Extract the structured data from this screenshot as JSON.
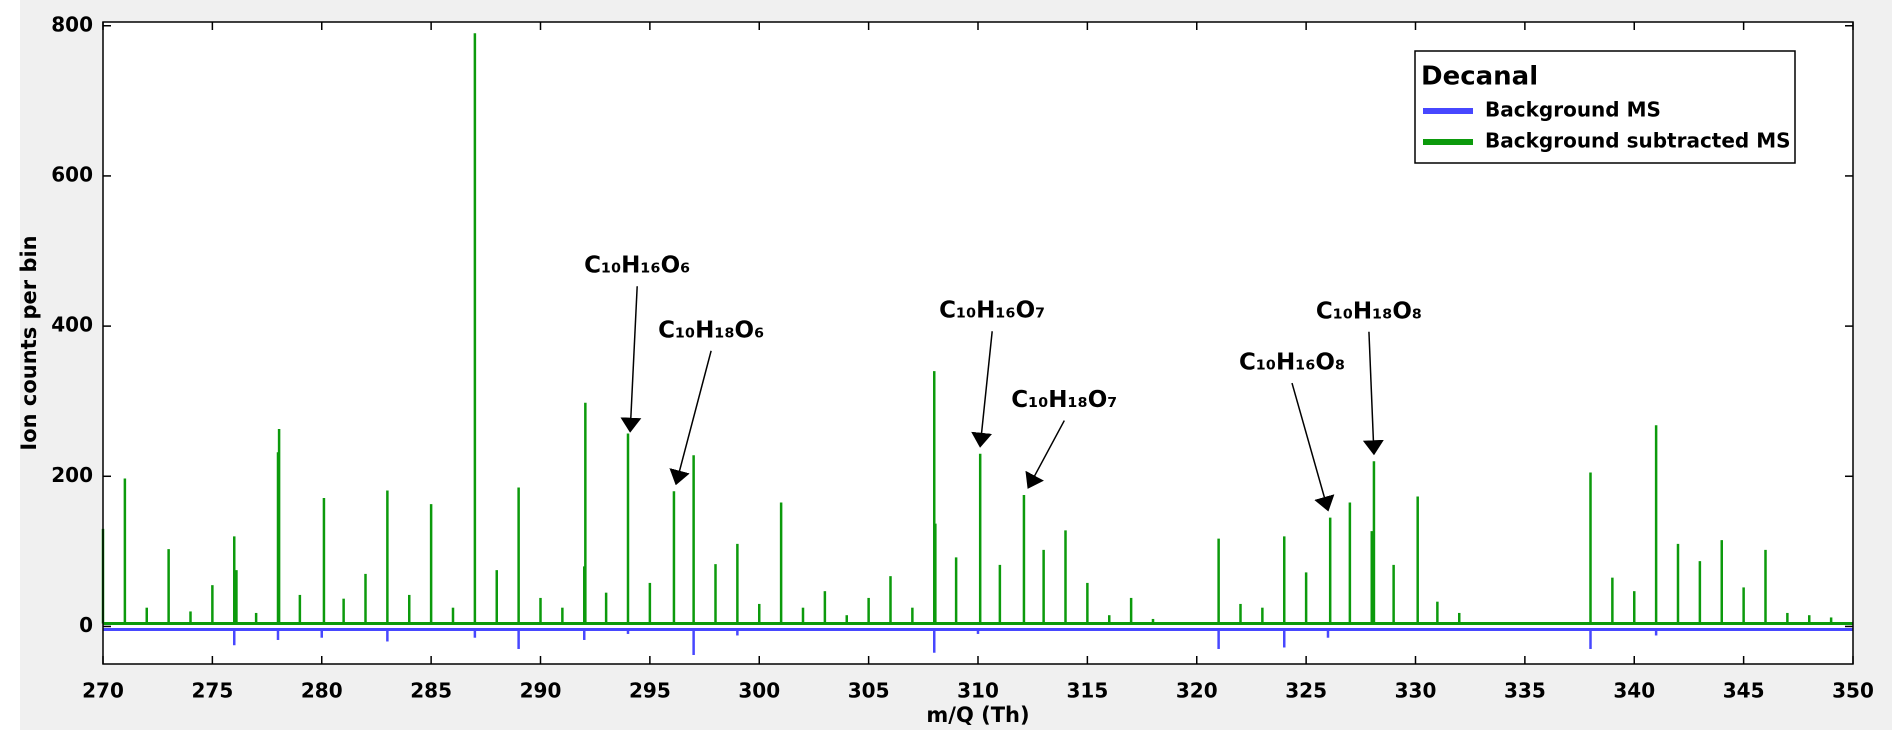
{
  "chart_data": {
    "type": "stem",
    "xlabel": "m/Q (Th)",
    "ylabel": "Ion counts per bin",
    "xlim": [
      270,
      350
    ],
    "ylim": [
      -50,
      805
    ],
    "xticks": [
      270,
      275,
      280,
      285,
      290,
      295,
      300,
      305,
      310,
      315,
      320,
      325,
      330,
      335,
      340,
      345,
      350
    ],
    "yticks": [
      0,
      200,
      400,
      600,
      800
    ],
    "grid": false,
    "legend_title": "Decanal",
    "legend_loc": "upper right",
    "series": [
      {
        "name": "Background MS",
        "color": "#4747ff",
        "x": [
          276,
          278,
          280,
          283,
          287,
          289,
          292,
          294,
          297,
          299,
          308,
          310,
          321,
          324,
          326,
          338,
          341
        ],
        "values": [
          -25,
          -18,
          -15,
          -20,
          -15,
          -30,
          -18,
          -10,
          -38,
          -12,
          -35,
          -10,
          -30,
          -28,
          -15,
          -30,
          -12
        ]
      },
      {
        "name": "Background subtracted MS",
        "color": "#0c9a0c",
        "x": [
          270,
          271,
          272,
          273,
          274,
          275,
          276,
          276.1,
          277,
          278,
          278.05,
          279,
          280.1,
          281,
          282,
          283,
          284,
          285,
          286,
          287,
          288,
          289,
          290,
          291,
          292,
          292.05,
          293,
          294,
          295,
          296.1,
          297,
          298,
          299,
          300,
          301,
          302,
          303,
          304,
          305,
          306,
          307,
          308,
          308.05,
          309,
          310.1,
          311,
          312.1,
          313,
          314,
          315,
          316,
          317,
          318,
          321,
          322,
          323,
          324,
          325,
          326.1,
          327,
          328,
          328.1,
          329,
          330.1,
          331,
          332,
          338,
          339,
          340,
          341,
          342,
          343,
          344,
          345,
          346,
          347,
          348,
          349
        ],
        "values": [
          130,
          197,
          25,
          103,
          20,
          55,
          120,
          75,
          18,
          232,
          263,
          42,
          171,
          37,
          70,
          181,
          42,
          163,
          25,
          790,
          75,
          185,
          38,
          25,
          80,
          298,
          45,
          257,
          58,
          180,
          228,
          83,
          110,
          30,
          165,
          25,
          47,
          15,
          38,
          67,
          25,
          340,
          137,
          92,
          230,
          82,
          175,
          102,
          128,
          58,
          15,
          38,
          10,
          117,
          30,
          25,
          120,
          72,
          145,
          165,
          127,
          220,
          82,
          173,
          33,
          18,
          205,
          65,
          47,
          268,
          110,
          87,
          115,
          52,
          102,
          18,
          15,
          12
        ]
      }
    ],
    "annotations": [
      {
        "text": "C₁₀H₁₆O₆",
        "x": 294.1,
        "y": 260
      },
      {
        "text": "C₁₀H₁₈O₆",
        "x": 296.2,
        "y": 190
      },
      {
        "text": "C₁₀H₁₆O₇",
        "x": 310.1,
        "y": 240
      },
      {
        "text": "C₁₀H₁₈O₇",
        "x": 312.3,
        "y": 185
      },
      {
        "text": "C₁₀H₁₆O₈",
        "x": 326,
        "y": 155
      },
      {
        "text": "C₁₀H₁₈O₈",
        "x": 328.1,
        "y": 230
      }
    ]
  }
}
